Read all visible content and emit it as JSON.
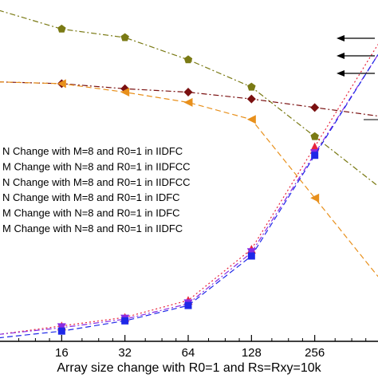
{
  "chart_data": {
    "type": "line",
    "x_scale": "log2",
    "xlim": [
      8,
      512
    ],
    "x_ticks": [
      16,
      32,
      64,
      128,
      256
    ],
    "x_tick_labels": [
      "16",
      "32",
      "64",
      "128",
      "256"
    ],
    "xlabel": "Array size  change with R0=1 and Rs=Rxy=10k",
    "ylabel": "",
    "legend_position": "left",
    "series": [
      {
        "name": "N Change with M=8  and R0=1  in IIDFC",
        "color": "#7a7a14",
        "marker": "pentagon",
        "line": "dash-dot",
        "x": [
          8,
          16,
          32,
          64,
          128,
          256
        ],
        "y": [
          0.97,
          0.915,
          0.89,
          0.825,
          0.745,
          0.6
        ]
      },
      {
        "name": "M Change with N=8 and R0=1  in IIDFCC",
        "color": "#7a1010",
        "marker": "diamond",
        "line": "dash-dot",
        "x": [
          8,
          16,
          32,
          64,
          128,
          256
        ],
        "y": [
          0.76,
          0.755,
          0.74,
          0.73,
          0.71,
          0.685
        ]
      },
      {
        "name": "N Change with M=8 and R0=1  in IIDFCC",
        "color": "#e8901c",
        "marker": "triangle-left",
        "line": "dash",
        "x": [
          8,
          16,
          32,
          64,
          128,
          256
        ],
        "y": [
          0.76,
          0.755,
          0.73,
          0.7,
          0.65,
          0.42
        ]
      },
      {
        "name": "N Change with M=8 and R0=1 in IDFC",
        "color": "#e8243c",
        "marker": "triangle-up",
        "line": "dot",
        "x": [
          8,
          16,
          32,
          64,
          128,
          256
        ],
        "y": [
          0.02,
          0.045,
          0.07,
          0.12,
          0.27,
          0.57
        ]
      },
      {
        "name": "M Change with N=8 and R0=1  in IDFC",
        "color": "#8a2be2",
        "marker": "triangle-down",
        "line": "dash-dot",
        "x": [
          8,
          16,
          32,
          64,
          128,
          256
        ],
        "y": [
          0.02,
          0.04,
          0.065,
          0.11,
          0.26,
          0.55
        ]
      },
      {
        "name": "M Change with N=8 and R0=1  in IIDFC",
        "color": "#1e28e8",
        "marker": "square",
        "line": "dash",
        "x": [
          8,
          16,
          32,
          64,
          128,
          256
        ],
        "y": [
          0.01,
          0.03,
          0.06,
          0.105,
          0.25,
          0.545
        ]
      }
    ]
  }
}
